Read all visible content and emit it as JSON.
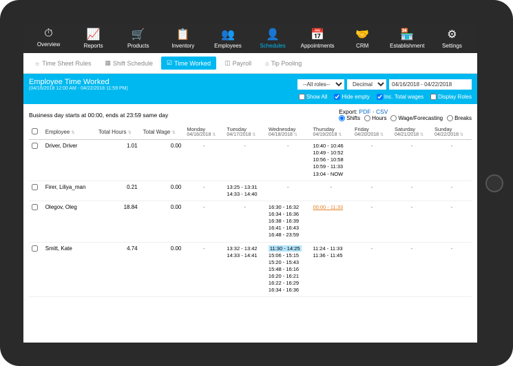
{
  "nav": [
    {
      "label": "Overview",
      "icon": "⏱"
    },
    {
      "label": "Reports",
      "icon": "📈"
    },
    {
      "label": "Products",
      "icon": "🛒"
    },
    {
      "label": "Inventory",
      "icon": "📋"
    },
    {
      "label": "Employees",
      "icon": "👥"
    },
    {
      "label": "Schedules",
      "icon": "👤",
      "active": true
    },
    {
      "label": "Appointments",
      "icon": "📅"
    },
    {
      "label": "CRM",
      "icon": "🤝"
    },
    {
      "label": "Establishment",
      "icon": "🏪"
    },
    {
      "label": "Settings",
      "icon": "⚙"
    }
  ],
  "subnav": [
    {
      "label": "Time Sheet Rules",
      "icon": "☼"
    },
    {
      "label": "Shift Schedule",
      "icon": "▦"
    },
    {
      "label": "Time Worked",
      "icon": "☑",
      "active": true
    },
    {
      "label": "Payroll",
      "icon": "◫"
    },
    {
      "label": "Tip Pooling",
      "icon": "⌂"
    }
  ],
  "header": {
    "title": "Employee Time Worked",
    "subtitle": "(04/16/2018 12:00 AM - 04/22/2018 11:59 PM)",
    "role_select": "--All roles--",
    "format_select": "Decimal",
    "date_range": "04/16/2018 - 04/22/2018",
    "opts": {
      "show_all": "Show All",
      "hide_empty": "Hide empty",
      "inc_total": "Inc. Total wages",
      "display_roles": "Display Roles"
    }
  },
  "biz_day": "Business day starts at 00:00, ends at 23:59 same day",
  "export": {
    "label": "Export:",
    "pdf": "PDF",
    "csv": "CSV"
  },
  "radios": {
    "shifts": "Shifts",
    "hours": "Hours",
    "wage": "Wage/Forecasting",
    "breaks": "Breaks"
  },
  "columns": {
    "employee": "Employee",
    "total_hours": "Total Hours",
    "total_wage": "Total Wage",
    "days": [
      {
        "day": "Monday",
        "date": "04/16/2018"
      },
      {
        "day": "Tuesday",
        "date": "04/17/2018"
      },
      {
        "day": "Wednesday",
        "date": "04/18/2018"
      },
      {
        "day": "Thursday",
        "date": "04/19/2018"
      },
      {
        "day": "Friday",
        "date": "04/20/2018"
      },
      {
        "day": "Saturday",
        "date": "04/21/2018"
      },
      {
        "day": "Sunday",
        "date": "04/22/2018"
      }
    ]
  },
  "rows": [
    {
      "name": "Driver, Driver",
      "hours": "1.01",
      "wage": "0.00",
      "cells": [
        "-",
        "-",
        "-",
        [
          "10:40 - 10:46",
          "10:49 - 10:52",
          "10:56 - 10:58",
          "10:59 - 11:33",
          "13:04 - NOW"
        ],
        "-",
        "-",
        "-"
      ]
    },
    {
      "name": "Firer, Liliya_man",
      "hours": "0.21",
      "wage": "0.00",
      "cells": [
        "-",
        [
          "13:25 - 13:31",
          "14:33 - 14:40"
        ],
        "-",
        "-",
        "-",
        "-",
        "-"
      ]
    },
    {
      "name": "Olegov, Oleg",
      "hours": "18.84",
      "wage": "0.00",
      "cells": [
        "-",
        "-",
        [
          "16:30 - 16:32",
          "16:34 - 16:36",
          "16:38 - 16:39",
          "16:41 - 16:43",
          "16:48 - 23:59"
        ],
        [
          {
            "text": "00:00 - 11:33",
            "cls": "hl-orange"
          }
        ],
        "-",
        "-",
        "-"
      ]
    },
    {
      "name": "Smitt, Kate",
      "hours": "4.74",
      "wage": "0.00",
      "cells": [
        "-",
        [
          "13:32 - 13:42",
          "14:33 - 14:41"
        ],
        [
          {
            "text": "11:30 - 14:25",
            "cls": "hl-blue"
          },
          "15:06 - 15:15",
          "15:20 - 15:43",
          "15:48 - 16:16",
          "16:20 - 16:21",
          "16:22 - 16:29",
          "16:34 - 16:36"
        ],
        [
          "11:24 - 11:33",
          "11:36 - 11:45"
        ],
        "-",
        "-",
        "-"
      ]
    }
  ]
}
